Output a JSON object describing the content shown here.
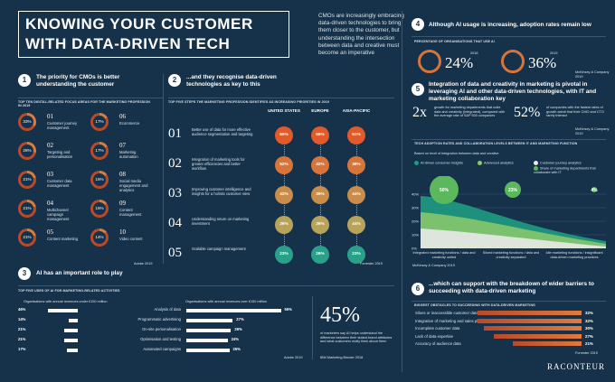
{
  "header": {
    "title_line1": "KNOWING YOUR CUSTOMER",
    "title_line2": "WITH DATA-DRIVEN TECH",
    "intro": "CMOs are increasingly embracing data-driven technologies to bring them closer to the customer, but understanding the intersection between data and creative must become an imperative"
  },
  "s1": {
    "num": "1",
    "title": "The priority for CMOs is better understanding the customer",
    "caption": "TOP TEN DIGITAL-RELATED FOCUS AREAS FOR THE MARKETING PROFESSION IN 2019",
    "source": "Adobe 2019",
    "items": [
      {
        "rank": "01",
        "label": "Customer journey management",
        "pct": "33%",
        "v": 33
      },
      {
        "rank": "02",
        "label": "Targeting and personalisation",
        "pct": "28%",
        "v": 28
      },
      {
        "rank": "03",
        "label": "Customer data management",
        "pct": "21%",
        "v": 21
      },
      {
        "rank": "04",
        "label": "Multichannel campaign management",
        "pct": "21%",
        "v": 21
      },
      {
        "rank": "05",
        "label": "Content marketing",
        "pct": "21%",
        "v": 21
      },
      {
        "rank": "06",
        "label": "Ecommerce",
        "pct": "17%",
        "v": 17
      },
      {
        "rank": "07",
        "label": "Marketing automation",
        "pct": "17%",
        "v": 17
      },
      {
        "rank": "08",
        "label": "Social media engagement and analytics",
        "pct": "15%",
        "v": 15
      },
      {
        "rank": "09",
        "label": "Content management",
        "pct": "15%",
        "v": 15
      },
      {
        "rank": "10",
        "label": "Video content",
        "pct": "14%",
        "v": 14
      }
    ]
  },
  "s2": {
    "num": "2",
    "title": "...and they recognise data-driven technologies as key to this",
    "caption": "TOP FIVE STEPS THE MARKETING PROFESSION IDENTIFIES AS INCREASING PRIORITIES IN 2019",
    "source": "Forrester 2019",
    "regions": [
      "UNITED STATES",
      "EUROPE",
      "ASIA-PACIFIC"
    ],
    "steps": [
      {
        "rank": "01",
        "label": "Better use of data for more effective audience segmentation and targeting",
        "vals": [
          "65%",
          "55%",
          "52%"
        ]
      },
      {
        "rank": "02",
        "label": "Integration of marketing tools for greater efficiencies and better workflow",
        "vals": [
          "52%",
          "42%",
          "39%"
        ]
      },
      {
        "rank": "03",
        "label": "Improving customer intelligence and insights for a holistic customer view",
        "vals": [
          "42%",
          "39%",
          "44%"
        ]
      },
      {
        "rank": "04",
        "label": "Understanding return on marketing investment",
        "vals": [
          "36%",
          "36%",
          "44%"
        ]
      },
      {
        "rank": "05",
        "label": "Scalable campaign management",
        "vals": [
          "23%",
          "26%",
          "23%"
        ]
      }
    ]
  },
  "s3": {
    "num": "3",
    "title": "AI has an important role to play",
    "caption": "TOP FIVE USES OF AI FOR MARKETING-RELATED ACTIVITIES",
    "left_head": "Organisations with annual revenues under £150 million",
    "right_head": "Organisations with annual revenues over £150 million",
    "source": "Adobe 2019",
    "rows": [
      {
        "label": "Analysis of data",
        "left": "46%",
        "lv": 46,
        "right": "55%",
        "rv": 55
      },
      {
        "label": "Programmatic advertising",
        "left": "14%",
        "lv": 14,
        "right": "27%",
        "rv": 27
      },
      {
        "label": "On-site personalisation",
        "left": "21%",
        "lv": 21,
        "right": "26%",
        "rv": 26
      },
      {
        "label": "Optimisation and testing",
        "left": "21%",
        "lv": 21,
        "right": "24%",
        "rv": 24
      },
      {
        "label": "Automated campaigns",
        "left": "17%",
        "lv": 17,
        "right": "25%",
        "rv": 25
      }
    ],
    "big": "45%",
    "big_text": "of marketers say AI helps understand the difference between their stated brand attributes and what customers really think about them",
    "big_source": "IBM Marketing Bender 2018"
  },
  "s4": {
    "num": "4",
    "title": "Although AI usage is increasing, adoption rates remain low",
    "caption": "PERCENTAGE OF ORGANISATIONS THAT USE AI",
    "y1": "2018",
    "v1": "24%",
    "y2": "2019",
    "v2": "36%",
    "source": "McKinsey & Company 2019"
  },
  "s5": {
    "num": "5",
    "title": "Integration of data and creativity in marketing is pivotal in leveraging AI and other data-driven technologies, with IT and marketing collaboration key",
    "stat1": "2x",
    "stat1_text": "growth for marketing departments that unite data and creativity (integrated), compared with the average rate of S&P 500 companies",
    "stat2": "52%",
    "stat2_text": "of companies with the fastest rates of growth admit that their CMO and CTO rarely interact",
    "source": "McKinsey & Company 2019"
  },
  "chart": {
    "caption": "TECH ADOPTION RATES AND COLLABORATION LEVELS BETWEEN IT AND MARKETING FUNCTION",
    "sub": "Based on level of integration between data and creative",
    "legend": [
      "AI-driven consumer insights",
      "Advanced analytics",
      "Customer journey analytics",
      "Share of marketing departments that collaborate with IT"
    ],
    "groups": [
      "Integrated marketing functions / data and creativity united",
      "Siloed marketing functions / data and creativity separated",
      "Idle marketing functions / insignificant data-driven marketing practices"
    ],
    "bubbles": [
      "50%",
      "23%",
      "4%"
    ],
    "yticks": [
      "40%",
      "30%",
      "20%",
      "10%",
      "0%"
    ],
    "source": "McKinsey & Company 2019"
  },
  "s6": {
    "num": "6",
    "title": "...which can support with the breakdown of wider barriers to succeeding with data-driven marketing",
    "caption": "BIGGEST OBSTACLES TO SUCCEEDING WITH DATA-DRIVEN MARKETING",
    "source": "Forrester 2019",
    "rows": [
      {
        "label": "Siloes or inaccessible customer data",
        "pct": "32%",
        "v": 32
      },
      {
        "label": "Integration of marketing and sales platforms",
        "pct": "32%",
        "v": 32
      },
      {
        "label": "Incomplete customer data",
        "pct": "30%",
        "v": 30
      },
      {
        "label": "Lack of data expertise",
        "pct": "27%",
        "v": 27
      },
      {
        "label": "Accuracy of audience data",
        "pct": "21%",
        "v": 21
      }
    ]
  },
  "brand": "RACONTEUR",
  "colors": {
    "bg": "#16324a",
    "accent": "#e07a3d",
    "accent2": "#b84a2a",
    "teal": "#1f9b83",
    "green": "#5cb85c"
  }
}
